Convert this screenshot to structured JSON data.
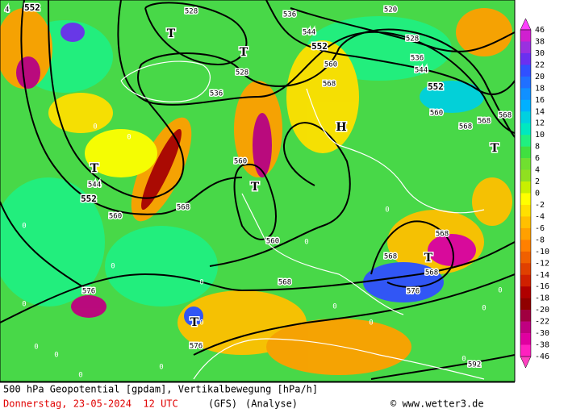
{
  "map": {
    "contour_labels": [
      552,
      528,
      536,
      520,
      544,
      552,
      528,
      536,
      544,
      552,
      560,
      568,
      528,
      536,
      560,
      568,
      568,
      568,
      544,
      552,
      560,
      568,
      560,
      560,
      568,
      568,
      568,
      568,
      576,
      576,
      576,
      592
    ],
    "pressure_centers": [
      "T",
      "T",
      "H",
      "T",
      "T",
      "T",
      "T",
      "T"
    ],
    "zero_labels": [
      "0",
      "0",
      "0",
      "0",
      "0",
      "0",
      "0",
      "0",
      "0",
      "0",
      "0",
      "0",
      "0",
      "0",
      "0",
      "0",
      "0",
      "0"
    ],
    "corner_label": "4"
  },
  "colorbar": {
    "labels": [
      46,
      38,
      30,
      22,
      20,
      18,
      16,
      14,
      12,
      10,
      8,
      6,
      4,
      2,
      0,
      -2,
      -4,
      -6,
      -8,
      -10,
      -12,
      -14,
      -16,
      -18,
      -20,
      -22,
      -30,
      -38,
      -46
    ],
    "colors": [
      "#d020d0",
      "#9a30e0",
      "#6a30f0",
      "#3050ff",
      "#2070ff",
      "#1090ff",
      "#00b0ff",
      "#00d0e0",
      "#00e8c0",
      "#20f080",
      "#40e040",
      "#70e030",
      "#90e020",
      "#c8f000",
      "#ffff00",
      "#ffe000",
      "#ffc000",
      "#ffa000",
      "#ff8000",
      "#f06000",
      "#e04000",
      "#d02000",
      "#b00000",
      "#900000",
      "#a00040",
      "#c00080",
      "#e000a0",
      "#ff20c0"
    ],
    "top_color": "#ff40ff",
    "bottom_color": "#ff40c0"
  },
  "caption": {
    "title": "500 hPa Geopotential [gpdam], Vertikalbewegung [hPa/h]",
    "date": "Donnerstag, 23-05-2024  12 UTC",
    "model": "(GFS)",
    "run": "(Analyse)",
    "credit": "© www.wetter3.de"
  }
}
